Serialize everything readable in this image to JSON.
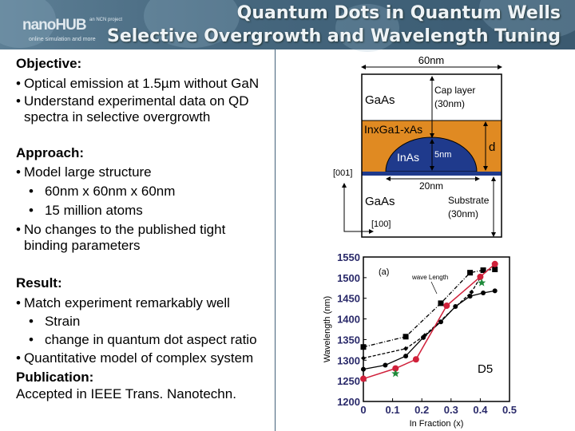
{
  "header": {
    "logo": "nanoHUB",
    "logo_tagline": "online simulation and more",
    "partner": "an NCN project",
    "title_line1": "Quantum Dots in Quantum Wells",
    "title_line2": "Selective Overgrowth and Wavelength Tuning"
  },
  "content": {
    "objective_heading": "Objective:",
    "objective": [
      "Optical emission at 1.5µm without GaN",
      "Understand experimental data on QD",
      "spectra in selective overgrowth"
    ],
    "approach_heading": "Approach:",
    "approach": [
      "Model large structure",
      "60nm x 60nm x 60nm",
      "15 million atoms",
      "No changes to the published tight",
      "binding parameters"
    ],
    "result_heading": "Result:",
    "result": [
      "Match experiment remarkably well",
      "Strain",
      "change in quantum dot aspect ratio",
      "Quantitative model of complex system"
    ],
    "publication_heading": "Publication:",
    "publication": "Accepted in IEEE Trans. Nanotechn."
  },
  "diagram": {
    "width": "60nm",
    "cap_material": "GaAs",
    "cap_label": "Cap layer",
    "cap_thickness": "(30nm)",
    "well_material": "InxGa1-xAs",
    "dot_material": "InAs",
    "dot_height": "5nm",
    "well_thickness": "d",
    "dot_base": "20nm",
    "substrate_material": "GaAs",
    "substrate_label": "Substrate",
    "substrate_thickness": "(30nm)",
    "axis_vertical": "[001]",
    "axis_horizontal": "[100]",
    "colors": {
      "well": "#e08a22",
      "dot": "#1f3a8c"
    }
  },
  "chart_data": {
    "type": "line",
    "panel_label": "(a)",
    "annotation": "wave Length",
    "inset_label": "D5",
    "xlabel": "In Fraction (x)",
    "ylabel": "Wavelength (nm)",
    "xlim": [
      0,
      0.5
    ],
    "ylim": [
      1200,
      1550
    ],
    "xticks": [
      "0",
      "0.1",
      "0.2",
      "0.3",
      "0.4",
      "0.5"
    ],
    "yticks": [
      "1200",
      "1250",
      "1300",
      "1350",
      "1400",
      "1450",
      "1500",
      "1550"
    ],
    "series": [
      {
        "name": "dash-dot squares",
        "style": "dashdot",
        "marker": "square",
        "color": "#000000",
        "x": [
          0,
          0.145,
          0.265,
          0.365,
          0.41,
          0.45
        ],
        "y": [
          1332,
          1357,
          1438,
          1512,
          1518,
          1520
        ]
      },
      {
        "name": "dashed diamonds",
        "style": "dashed",
        "marker": "diamond",
        "color": "#000000",
        "x": [
          0,
          0.145,
          0.21,
          0.37,
          0.4
        ],
        "y": [
          1305,
          1328,
          1360,
          1465,
          1500
        ]
      },
      {
        "name": "solid circles",
        "style": "solid",
        "marker": "circle",
        "color": "#000000",
        "x": [
          0,
          0.075,
          0.145,
          0.205,
          0.265,
          0.315,
          0.365,
          0.41,
          0.45
        ],
        "y": [
          1278,
          1288,
          1310,
          1355,
          1393,
          1430,
          1455,
          1463,
          1468
        ]
      },
      {
        "name": "red model",
        "style": "solid",
        "marker": "circle",
        "color": "#d0203a",
        "x": [
          0,
          0.11,
          0.18,
          0.285,
          0.4,
          0.45
        ],
        "y": [
          1255,
          1280,
          1302,
          1432,
          1502,
          1533
        ]
      },
      {
        "name": "experiment",
        "style": "none",
        "marker": "star",
        "color": "#1e8a3a",
        "x": [
          0.11,
          0.405
        ],
        "y": [
          1268,
          1488
        ]
      }
    ]
  }
}
